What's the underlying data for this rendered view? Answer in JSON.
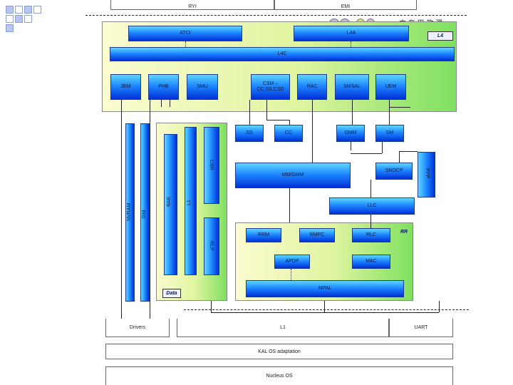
{
  "top": {
    "ri_label": "RYI",
    "pm_label": "EMI",
    "cjk": "中 夸 甲 教 渭"
  },
  "l4": {
    "tag": "L4",
    "atci": "ATCI",
    "l4a": "L4A",
    "l4c": "L4C"
  },
  "modules": {
    "jem": "JEM",
    "phb": "PHB",
    "smu": "SMU",
    "csm": "CSM –\nCC,SS,CSD",
    "rac": "RAC",
    "smsal": "SMSAL",
    "uem": "UEM"
  },
  "middle": {
    "ss": "SS",
    "cc": "CC",
    "gmm": "GMM",
    "sm": "SM",
    "cbr": "CBR",
    "mmgmm": "MM/GMM",
    "sndcp": "SNDCP",
    "ppp": "PPP",
    "llc": "LLC"
  },
  "vertical": {
    "nvram": "NVRAM",
    "sim": "SIM",
    "rak": "RAK",
    "l1": "L1",
    "rlp": "RLP"
  },
  "rr": {
    "tag": "RR",
    "rrm": "RRM",
    "rmpc": "RMPC",
    "rlc": "RLC",
    "apdp": "APDP",
    "mac": "MAC",
    "mpal": "MPAL"
  },
  "data_tag": "Data",
  "bottom": {
    "drivers": "Drivers",
    "l1": "L1",
    "uart": "UART",
    "kal": "KAL OS adaptation",
    "nucleus": "Nucleus OS"
  }
}
